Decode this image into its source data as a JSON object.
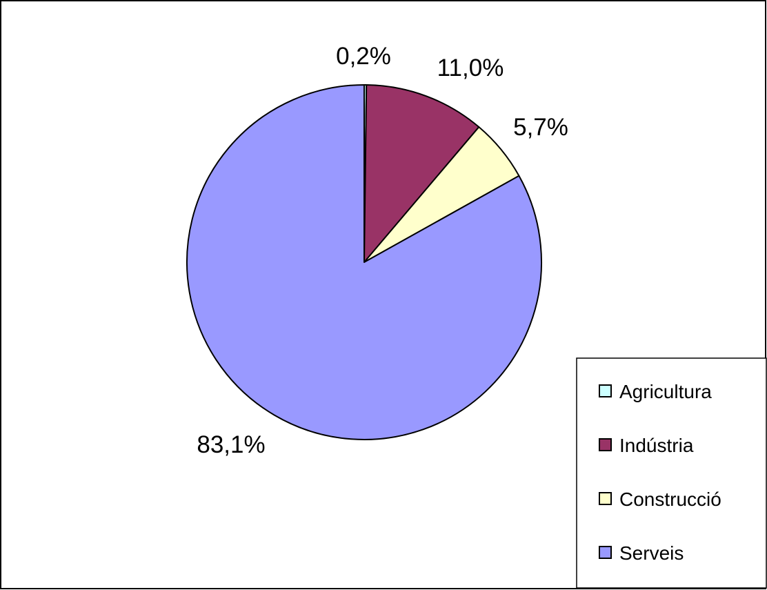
{
  "chart_data": {
    "type": "pie",
    "categories": [
      "Agricultura",
      "Indústria",
      "Construcció",
      "Serveis"
    ],
    "values": [
      0.2,
      11.0,
      5.7,
      83.1
    ],
    "labels": [
      "0,2%",
      "11,0%",
      "5,7%",
      "83,1%"
    ],
    "colors": [
      "#ccffff",
      "#993366",
      "#ffffcc",
      "#9999ff"
    ],
    "legend_position": "bottom-right",
    "start_angle": "12 o'clock",
    "direction": "clockwise"
  }
}
